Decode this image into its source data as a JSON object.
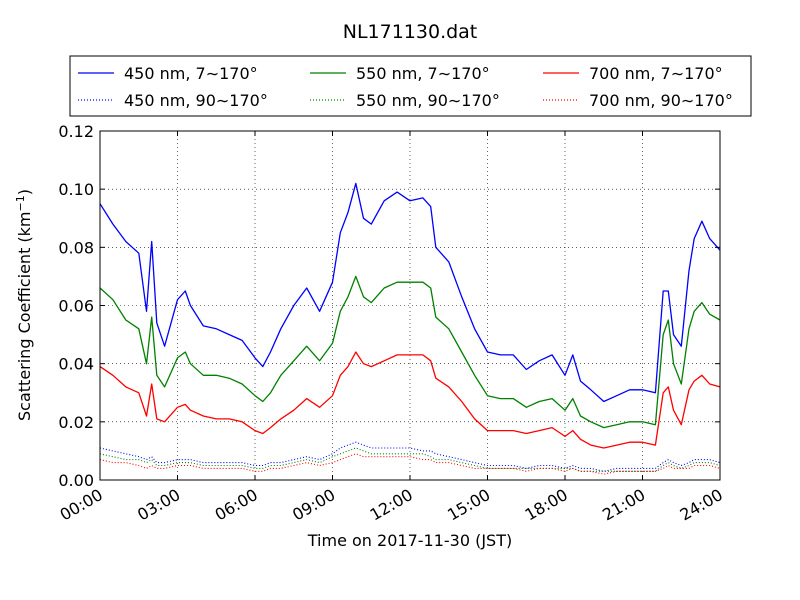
{
  "chart_data": {
    "type": "line",
    "title": "NL171130.dat",
    "xlabel": "Time on 2017-11-30 (JST)",
    "ylabel": "Scattering Coefficient (km",
    "ylabel_sup": "−1",
    "ylabel_close": ")",
    "xlim": [
      0,
      24
    ],
    "ylim": [
      0,
      0.12
    ],
    "grid": true,
    "legend_position": "top",
    "x_ticks": [
      0,
      3,
      6,
      9,
      12,
      15,
      18,
      21,
      24
    ],
    "x_tick_labels": [
      "00:00",
      "03:00",
      "06:00",
      "09:00",
      "12:00",
      "15:00",
      "18:00",
      "21:00",
      "24:00"
    ],
    "y_ticks": [
      0,
      0.02,
      0.04,
      0.06,
      0.08,
      0.1,
      0.12
    ],
    "y_tick_labels": [
      "0.00",
      "0.02",
      "0.04",
      "0.06",
      "0.08",
      "0.10",
      "0.12"
    ],
    "x": [
      0,
      0.5,
      1,
      1.5,
      1.8,
      2,
      2.2,
      2.5,
      3,
      3.3,
      3.5,
      4,
      4.5,
      5,
      5.5,
      6,
      6.3,
      6.6,
      7,
      7.5,
      8,
      8.5,
      9,
      9.3,
      9.6,
      9.9,
      10.2,
      10.5,
      11,
      11.5,
      12,
      12.5,
      12.8,
      13,
      13.5,
      14,
      14.5,
      15,
      15.5,
      16,
      16.5,
      17,
      17.5,
      18,
      18.3,
      18.6,
      19,
      19.5,
      20,
      20.5,
      21,
      21.5,
      21.8,
      22,
      22.2,
      22.5,
      22.8,
      23,
      23.3,
      23.6,
      24
    ],
    "series": [
      {
        "name": "450 nm, 7∼170°",
        "color": "#0000ff",
        "style": "solid",
        "values": [
          0.095,
          0.088,
          0.082,
          0.078,
          0.058,
          0.082,
          0.054,
          0.046,
          0.062,
          0.065,
          0.06,
          0.053,
          0.052,
          0.05,
          0.048,
          0.042,
          0.039,
          0.044,
          0.052,
          0.06,
          0.066,
          0.058,
          0.068,
          0.085,
          0.092,
          0.102,
          0.09,
          0.088,
          0.096,
          0.099,
          0.096,
          0.097,
          0.094,
          0.08,
          0.075,
          0.063,
          0.052,
          0.044,
          0.043,
          0.043,
          0.038,
          0.041,
          0.043,
          0.036,
          0.043,
          0.034,
          0.031,
          0.027,
          0.029,
          0.031,
          0.031,
          0.03,
          0.065,
          0.065,
          0.05,
          0.046,
          0.072,
          0.083,
          0.089,
          0.083,
          0.079
        ]
      },
      {
        "name": "550 nm, 7∼170°",
        "color": "#008000",
        "style": "solid",
        "values": [
          0.066,
          0.062,
          0.055,
          0.052,
          0.04,
          0.056,
          0.036,
          0.032,
          0.042,
          0.044,
          0.04,
          0.036,
          0.036,
          0.035,
          0.033,
          0.029,
          0.027,
          0.03,
          0.036,
          0.041,
          0.046,
          0.041,
          0.047,
          0.058,
          0.063,
          0.07,
          0.063,
          0.061,
          0.066,
          0.068,
          0.068,
          0.068,
          0.066,
          0.056,
          0.052,
          0.044,
          0.036,
          0.029,
          0.028,
          0.028,
          0.025,
          0.027,
          0.028,
          0.024,
          0.028,
          0.022,
          0.02,
          0.018,
          0.019,
          0.02,
          0.02,
          0.019,
          0.05,
          0.055,
          0.04,
          0.033,
          0.052,
          0.058,
          0.061,
          0.057,
          0.055
        ]
      },
      {
        "name": "700 nm, 7∼170°",
        "color": "#ff0000",
        "style": "solid",
        "values": [
          0.039,
          0.036,
          0.032,
          0.03,
          0.022,
          0.033,
          0.021,
          0.02,
          0.025,
          0.026,
          0.024,
          0.022,
          0.021,
          0.021,
          0.02,
          0.017,
          0.016,
          0.018,
          0.021,
          0.024,
          0.028,
          0.025,
          0.029,
          0.036,
          0.039,
          0.044,
          0.04,
          0.039,
          0.041,
          0.043,
          0.043,
          0.043,
          0.041,
          0.035,
          0.032,
          0.027,
          0.021,
          0.017,
          0.017,
          0.017,
          0.016,
          0.017,
          0.018,
          0.015,
          0.017,
          0.014,
          0.012,
          0.011,
          0.012,
          0.013,
          0.013,
          0.012,
          0.03,
          0.032,
          0.024,
          0.019,
          0.031,
          0.034,
          0.036,
          0.033,
          0.032
        ]
      },
      {
        "name": "450 nm, 90∼170°",
        "color": "#0000ff",
        "style": "dotted",
        "values": [
          0.011,
          0.01,
          0.009,
          0.008,
          0.007,
          0.008,
          0.006,
          0.006,
          0.007,
          0.007,
          0.007,
          0.006,
          0.006,
          0.006,
          0.006,
          0.005,
          0.005,
          0.006,
          0.006,
          0.007,
          0.008,
          0.007,
          0.009,
          0.011,
          0.012,
          0.013,
          0.012,
          0.011,
          0.011,
          0.011,
          0.011,
          0.01,
          0.01,
          0.009,
          0.008,
          0.007,
          0.006,
          0.005,
          0.005,
          0.005,
          0.004,
          0.005,
          0.005,
          0.004,
          0.005,
          0.004,
          0.004,
          0.003,
          0.004,
          0.004,
          0.004,
          0.004,
          0.006,
          0.007,
          0.006,
          0.005,
          0.006,
          0.007,
          0.007,
          0.007,
          0.006
        ]
      },
      {
        "name": "550 nm, 90∼170°",
        "color": "#008000",
        "style": "dotted",
        "values": [
          0.009,
          0.008,
          0.007,
          0.007,
          0.006,
          0.007,
          0.005,
          0.005,
          0.006,
          0.006,
          0.006,
          0.005,
          0.005,
          0.005,
          0.005,
          0.004,
          0.004,
          0.005,
          0.005,
          0.006,
          0.007,
          0.006,
          0.008,
          0.009,
          0.01,
          0.011,
          0.01,
          0.009,
          0.009,
          0.009,
          0.009,
          0.009,
          0.008,
          0.007,
          0.007,
          0.006,
          0.005,
          0.004,
          0.004,
          0.004,
          0.004,
          0.004,
          0.004,
          0.004,
          0.004,
          0.003,
          0.003,
          0.003,
          0.003,
          0.003,
          0.003,
          0.003,
          0.005,
          0.006,
          0.005,
          0.004,
          0.005,
          0.006,
          0.006,
          0.006,
          0.005
        ]
      },
      {
        "name": "700 nm, 90∼170°",
        "color": "#ff0000",
        "style": "dotted",
        "values": [
          0.007,
          0.006,
          0.006,
          0.005,
          0.004,
          0.005,
          0.004,
          0.004,
          0.005,
          0.005,
          0.005,
          0.004,
          0.004,
          0.004,
          0.004,
          0.003,
          0.003,
          0.004,
          0.004,
          0.005,
          0.006,
          0.005,
          0.006,
          0.007,
          0.008,
          0.009,
          0.008,
          0.008,
          0.008,
          0.008,
          0.008,
          0.007,
          0.007,
          0.006,
          0.006,
          0.005,
          0.004,
          0.004,
          0.004,
          0.004,
          0.003,
          0.004,
          0.004,
          0.003,
          0.004,
          0.003,
          0.003,
          0.002,
          0.003,
          0.003,
          0.003,
          0.003,
          0.004,
          0.005,
          0.004,
          0.004,
          0.004,
          0.005,
          0.005,
          0.005,
          0.004
        ]
      }
    ]
  }
}
